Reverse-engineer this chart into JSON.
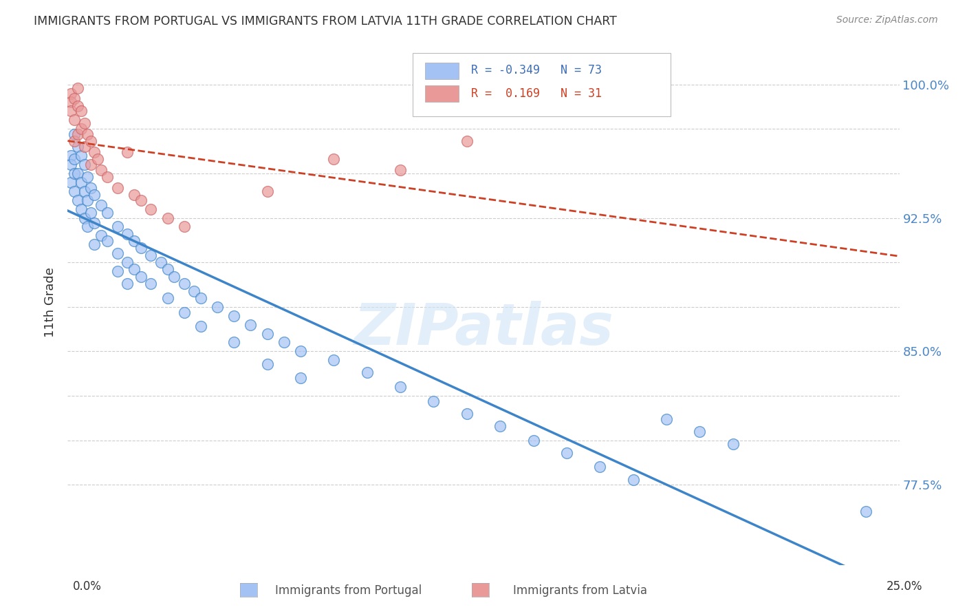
{
  "title": "IMMIGRANTS FROM PORTUGAL VS IMMIGRANTS FROM LATVIA 11TH GRADE CORRELATION CHART",
  "source": "Source: ZipAtlas.com",
  "ylabel": "11th Grade",
  "xlim": [
    0.0,
    0.25
  ],
  "ylim": [
    0.73,
    1.025
  ],
  "y_labeled_ticks": {
    "0.775": "77.5%",
    "0.850": "85.0%",
    "0.925": "92.5%",
    "1.000": "100.0%"
  },
  "y_all_ticks": [
    0.775,
    0.8,
    0.825,
    0.85,
    0.875,
    0.9,
    0.925,
    0.95,
    0.975,
    1.0
  ],
  "watermark": "ZIPatlas",
  "portugal_color": "#a4c2f4",
  "latvia_color": "#ea9999",
  "portugal_line_color": "#3d85c8",
  "latvia_line_color": "#cc4125",
  "portugal_scatter": [
    [
      0.001,
      0.96
    ],
    [
      0.001,
      0.955
    ],
    [
      0.001,
      0.945
    ],
    [
      0.002,
      0.972
    ],
    [
      0.002,
      0.958
    ],
    [
      0.002,
      0.95
    ],
    [
      0.002,
      0.94
    ],
    [
      0.003,
      0.965
    ],
    [
      0.003,
      0.95
    ],
    [
      0.003,
      0.935
    ],
    [
      0.004,
      0.96
    ],
    [
      0.004,
      0.945
    ],
    [
      0.004,
      0.93
    ],
    [
      0.005,
      0.955
    ],
    [
      0.005,
      0.94
    ],
    [
      0.005,
      0.925
    ],
    [
      0.006,
      0.948
    ],
    [
      0.006,
      0.935
    ],
    [
      0.006,
      0.92
    ],
    [
      0.007,
      0.942
    ],
    [
      0.007,
      0.928
    ],
    [
      0.008,
      0.938
    ],
    [
      0.008,
      0.922
    ],
    [
      0.008,
      0.91
    ],
    [
      0.01,
      0.932
    ],
    [
      0.01,
      0.915
    ],
    [
      0.012,
      0.928
    ],
    [
      0.012,
      0.912
    ],
    [
      0.015,
      0.92
    ],
    [
      0.015,
      0.905
    ],
    [
      0.015,
      0.895
    ],
    [
      0.018,
      0.916
    ],
    [
      0.018,
      0.9
    ],
    [
      0.018,
      0.888
    ],
    [
      0.02,
      0.912
    ],
    [
      0.02,
      0.896
    ],
    [
      0.022,
      0.908
    ],
    [
      0.022,
      0.892
    ],
    [
      0.025,
      0.904
    ],
    [
      0.025,
      0.888
    ],
    [
      0.028,
      0.9
    ],
    [
      0.03,
      0.896
    ],
    [
      0.03,
      0.88
    ],
    [
      0.032,
      0.892
    ],
    [
      0.035,
      0.888
    ],
    [
      0.035,
      0.872
    ],
    [
      0.038,
      0.884
    ],
    [
      0.04,
      0.88
    ],
    [
      0.04,
      0.864
    ],
    [
      0.045,
      0.875
    ],
    [
      0.05,
      0.87
    ],
    [
      0.05,
      0.855
    ],
    [
      0.055,
      0.865
    ],
    [
      0.06,
      0.86
    ],
    [
      0.06,
      0.843
    ],
    [
      0.065,
      0.855
    ],
    [
      0.07,
      0.85
    ],
    [
      0.07,
      0.835
    ],
    [
      0.08,
      0.845
    ],
    [
      0.09,
      0.838
    ],
    [
      0.1,
      0.83
    ],
    [
      0.11,
      0.822
    ],
    [
      0.12,
      0.815
    ],
    [
      0.13,
      0.808
    ],
    [
      0.14,
      0.8
    ],
    [
      0.15,
      0.793
    ],
    [
      0.16,
      0.785
    ],
    [
      0.17,
      0.778
    ],
    [
      0.18,
      0.812
    ],
    [
      0.19,
      0.805
    ],
    [
      0.2,
      0.798
    ],
    [
      0.24,
      0.76
    ]
  ],
  "latvia_scatter": [
    [
      0.001,
      0.995
    ],
    [
      0.001,
      0.99
    ],
    [
      0.001,
      0.985
    ],
    [
      0.002,
      0.992
    ],
    [
      0.002,
      0.98
    ],
    [
      0.002,
      0.968
    ],
    [
      0.003,
      0.998
    ],
    [
      0.003,
      0.988
    ],
    [
      0.003,
      0.972
    ],
    [
      0.004,
      0.985
    ],
    [
      0.004,
      0.975
    ],
    [
      0.005,
      0.978
    ],
    [
      0.005,
      0.965
    ],
    [
      0.006,
      0.972
    ],
    [
      0.007,
      0.968
    ],
    [
      0.007,
      0.955
    ],
    [
      0.008,
      0.962
    ],
    [
      0.009,
      0.958
    ],
    [
      0.01,
      0.952
    ],
    [
      0.012,
      0.948
    ],
    [
      0.015,
      0.942
    ],
    [
      0.018,
      0.962
    ],
    [
      0.02,
      0.938
    ],
    [
      0.022,
      0.935
    ],
    [
      0.025,
      0.93
    ],
    [
      0.03,
      0.925
    ],
    [
      0.035,
      0.92
    ],
    [
      0.06,
      0.94
    ],
    [
      0.08,
      0.958
    ],
    [
      0.1,
      0.952
    ],
    [
      0.12,
      0.968
    ]
  ]
}
